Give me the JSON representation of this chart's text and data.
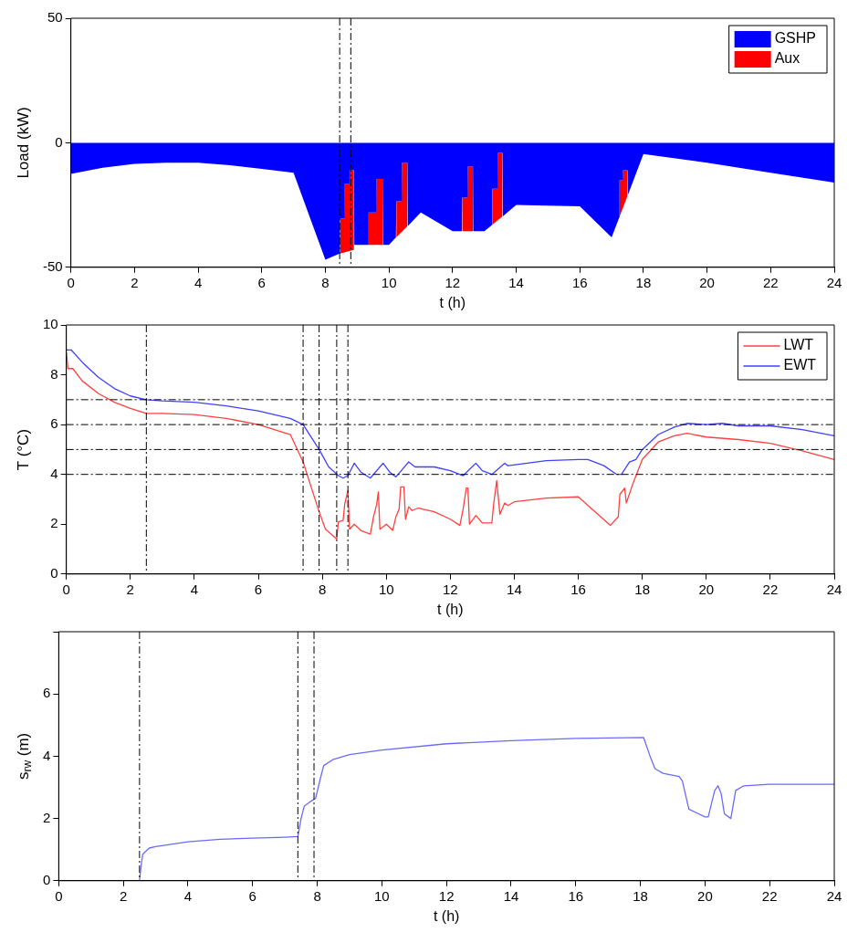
{
  "chart_data": [
    {
      "type": "area",
      "stacked": true,
      "ylabel": "Load (kW)",
      "xlabel": "t (h)",
      "xlim": [
        0,
        24
      ],
      "xticks": [
        0,
        2,
        4,
        6,
        8,
        10,
        12,
        14,
        16,
        18,
        20,
        22,
        24
      ],
      "ylim": [
        -50,
        50
      ],
      "yticks": [
        -50,
        0,
        50
      ],
      "legend": "top right",
      "grid": false,
      "x": [
        0,
        1,
        2,
        3,
        4,
        5,
        6,
        7,
        8,
        8.45,
        8.46,
        8.6,
        8.61,
        8.75,
        8.76,
        8.9,
        8.91,
        9.35,
        9.36,
        9.6,
        9.61,
        9.8,
        9.81,
        10,
        10.22,
        10.23,
        10.4,
        10.41,
        10.58,
        10.59,
        11,
        12,
        12.29,
        12.3,
        12.47,
        12.48,
        12.64,
        12.65,
        13,
        13.24,
        13.25,
        13.42,
        13.43,
        13.57,
        13.58,
        14,
        16,
        17,
        17.24,
        17.25,
        17.35,
        17.36,
        17.5,
        17.51,
        18,
        20,
        22,
        24
      ],
      "series": [
        {
          "name": "GSHP",
          "color": "#0000ff",
          "values": [
            -12.5,
            -10,
            -8.5,
            -8,
            -8,
            -9,
            -10.5,
            -12,
            -47,
            -44.5,
            -30.5,
            -30.5,
            -16.5,
            -16.5,
            -11,
            -11,
            -41,
            -41,
            -28,
            -28,
            -14.5,
            -14.5,
            -41,
            -41,
            -38,
            -23.5,
            -23.5,
            -8,
            -8,
            -33.5,
            -28,
            -35.5,
            -35.5,
            -22,
            -22,
            -9.5,
            -9.5,
            -35.5,
            -35.5,
            -33,
            -18.5,
            -18.5,
            -4,
            -4,
            -29.5,
            -25,
            -25.5,
            -38,
            -30,
            -15,
            -15,
            -11,
            -11,
            -21,
            -4.5,
            -8,
            -12,
            -16
          ]
        },
        {
          "name": "Aux",
          "color": "#ff0000",
          "values": [
            null,
            null,
            null,
            null,
            null,
            null,
            null,
            null,
            null,
            null,
            -14,
            -13.5,
            -27.5,
            -27,
            -32.5,
            -32,
            null,
            null,
            -13,
            -13,
            -26.5,
            -26.5,
            null,
            null,
            null,
            -14.5,
            -12.3,
            -27.7,
            -25.5,
            null,
            null,
            null,
            null,
            -13.5,
            -13.5,
            -26,
            -26,
            null,
            null,
            null,
            -14.4,
            -12.6,
            -27,
            -25.5,
            null,
            null,
            null,
            null,
            null,
            -14.6,
            -11.3,
            -15,
            -10.3,
            null,
            null,
            null,
            null,
            null
          ]
        }
      ],
      "ref_lines": [
        {
          "axis": "x",
          "value": 8.45,
          "color": "#000000",
          "line_style": "dashed"
        },
        {
          "axis": "x",
          "value": 8.8,
          "color": "#000000",
          "line_style": "dashed"
        }
      ]
    },
    {
      "type": "line",
      "ylabel": "T (°C)",
      "xlabel": "t (h)",
      "xlim": [
        0,
        24
      ],
      "xticks": [
        0,
        2,
        4,
        6,
        8,
        10,
        12,
        14,
        16,
        18,
        20,
        22,
        24
      ],
      "ylim": [
        0,
        10
      ],
      "yticks": [
        0,
        2,
        4,
        6,
        8,
        10
      ],
      "legend": "top right",
      "grid": false,
      "marker": "none",
      "line_style": "solid",
      "series": [
        {
          "name": "LWT",
          "color": "#ff4040",
          "x": [
            0,
            0.05,
            0.2,
            0.5,
            1,
            1.5,
            2,
            2.5,
            3,
            4,
            5,
            6,
            7,
            7.4,
            7.9,
            8.1,
            8.45,
            8.5,
            8.65,
            8.7,
            8.8,
            8.85,
            9,
            9.2,
            9.5,
            9.6,
            9.7,
            9.75,
            9.8,
            10,
            10.2,
            10.3,
            10.4,
            10.45,
            10.55,
            10.6,
            10.7,
            10.8,
            11,
            11.5,
            12,
            12.3,
            12.4,
            12.5,
            12.55,
            12.6,
            12.8,
            13,
            13.3,
            13.35,
            13.45,
            13.55,
            13.7,
            13.8,
            14,
            15,
            16,
            17,
            17.25,
            17.3,
            17.45,
            17.5,
            17.7,
            18,
            18.5,
            19,
            19.4,
            20,
            21,
            22,
            23,
            24
          ],
          "values": [
            8.9,
            8.25,
            8.25,
            7.75,
            7.25,
            6.9,
            6.65,
            6.45,
            6.45,
            6.4,
            6.25,
            6,
            5.6,
            4.5,
            2.5,
            1.8,
            1.4,
            2.1,
            2.15,
            2.8,
            3.35,
            1.8,
            2,
            1.75,
            1.6,
            2.3,
            2.8,
            3.3,
            1.8,
            2,
            1.75,
            2.3,
            2.6,
            3.5,
            3.5,
            2.2,
            2.7,
            2.55,
            2.65,
            2.5,
            2.2,
            1.95,
            2.6,
            3.45,
            3.45,
            2,
            2.35,
            2.05,
            2.05,
            2.75,
            3.75,
            2.4,
            2.85,
            2.75,
            2.9,
            3.05,
            3.1,
            1.95,
            2.3,
            3.2,
            3.45,
            2.85,
            3.6,
            4.6,
            5.3,
            5.55,
            5.65,
            5.5,
            5.4,
            5.25,
            4.95,
            4.6
          ]
        },
        {
          "name": "EWT",
          "color": "#4040ff",
          "x": [
            0,
            0.15,
            0.5,
            1,
            1.5,
            2,
            2.5,
            3,
            4,
            5,
            6,
            7,
            7.4,
            7.9,
            8.2,
            8.5,
            8.65,
            8.8,
            9,
            9.2,
            9.5,
            9.9,
            10.1,
            10.3,
            10.7,
            10.9,
            11.5,
            12,
            12.4,
            12.8,
            13,
            13.3,
            13.7,
            13.8,
            15,
            16,
            16.3,
            16.8,
            17.2,
            17.35,
            17.6,
            17.8,
            18,
            18.5,
            19,
            19.4,
            20,
            20.5,
            21,
            22,
            23,
            24
          ],
          "values": [
            9,
            9,
            8.5,
            7.9,
            7.45,
            7.15,
            7,
            6.95,
            6.9,
            6.75,
            6.55,
            6.25,
            6,
            5,
            4.3,
            3.95,
            3.85,
            3.95,
            4.45,
            4.1,
            3.85,
            4.45,
            4.1,
            3.9,
            4.5,
            4.3,
            4.3,
            4.15,
            3.95,
            4.45,
            4.15,
            4,
            4.45,
            4.35,
            4.55,
            4.6,
            4.6,
            4.35,
            4,
            4,
            4.5,
            4.6,
            5,
            5.6,
            5.9,
            6.05,
            6,
            6.05,
            5.95,
            5.95,
            5.8,
            5.55
          ]
        }
      ],
      "ref_lines": [
        {
          "axis": "y",
          "value": 7,
          "color": "#000000",
          "line_style": "dashed"
        },
        {
          "axis": "y",
          "value": 6,
          "color": "#000000",
          "line_style": "dashed"
        },
        {
          "axis": "y",
          "value": 5,
          "color": "#000000",
          "line_style": "dashed"
        },
        {
          "axis": "y",
          "value": 4,
          "color": "#000000",
          "line_style": "dashed"
        },
        {
          "axis": "x",
          "value": 2.5,
          "color": "#000000",
          "line_style": "dashed"
        },
        {
          "axis": "x",
          "value": 7.4,
          "color": "#000000",
          "line_style": "dashed"
        },
        {
          "axis": "x",
          "value": 7.9,
          "color": "#000000",
          "line_style": "dashed"
        },
        {
          "axis": "x",
          "value": 8.45,
          "color": "#000000",
          "line_style": "dashed"
        },
        {
          "axis": "x",
          "value": 8.8,
          "color": "#000000",
          "line_style": "dashed"
        }
      ]
    },
    {
      "type": "line",
      "ylabel": "s$_{rw}$ (m)",
      "xlabel": "t (h)",
      "xlim": [
        0,
        24
      ],
      "xticks": [
        0,
        2,
        4,
        6,
        8,
        10,
        12,
        14,
        16,
        18,
        20,
        22,
        24
      ],
      "ylim": [
        0,
        8
      ],
      "yticks": [
        0,
        2,
        4,
        6,
        {
          "value": 8,
          "label": null
        }
      ],
      "grid": false,
      "marker": "none",
      "line_style": "solid",
      "series": [
        {
          "color": "#6a6aff",
          "x": [
            2.5,
            2.55,
            2.6,
            2.8,
            3,
            4,
            5,
            6,
            7,
            7.4,
            7.5,
            7.6,
            7.8,
            7.95,
            8.1,
            8.2,
            8.5,
            9,
            10,
            12,
            14,
            16,
            18.1,
            18.3,
            18.45,
            18.7,
            19.2,
            19.3,
            19.5,
            20,
            20.1,
            20.3,
            20.4,
            20.5,
            20.6,
            20.8,
            20.95,
            21.2,
            22,
            24
          ],
          "values": [
            0,
            0.5,
            0.85,
            1.05,
            1.1,
            1.25,
            1.33,
            1.37,
            1.4,
            1.42,
            2,
            2.4,
            2.55,
            2.65,
            3.3,
            3.7,
            3.9,
            4.05,
            4.2,
            4.4,
            4.5,
            4.57,
            4.6,
            4,
            3.6,
            3.45,
            3.35,
            3.2,
            2.3,
            2.05,
            2.05,
            2.9,
            3.05,
            2.8,
            2.15,
            2,
            2.9,
            3.05,
            3.1,
            3.1
          ]
        }
      ],
      "ref_lines": [
        {
          "axis": "x",
          "value": 2.5,
          "color": "#000000",
          "line_style": "dashed"
        },
        {
          "axis": "x",
          "value": 7.4,
          "color": "#000000",
          "line_style": "dashed"
        },
        {
          "axis": "x",
          "value": 7.9,
          "color": "#000000",
          "line_style": "dashed"
        }
      ]
    }
  ]
}
